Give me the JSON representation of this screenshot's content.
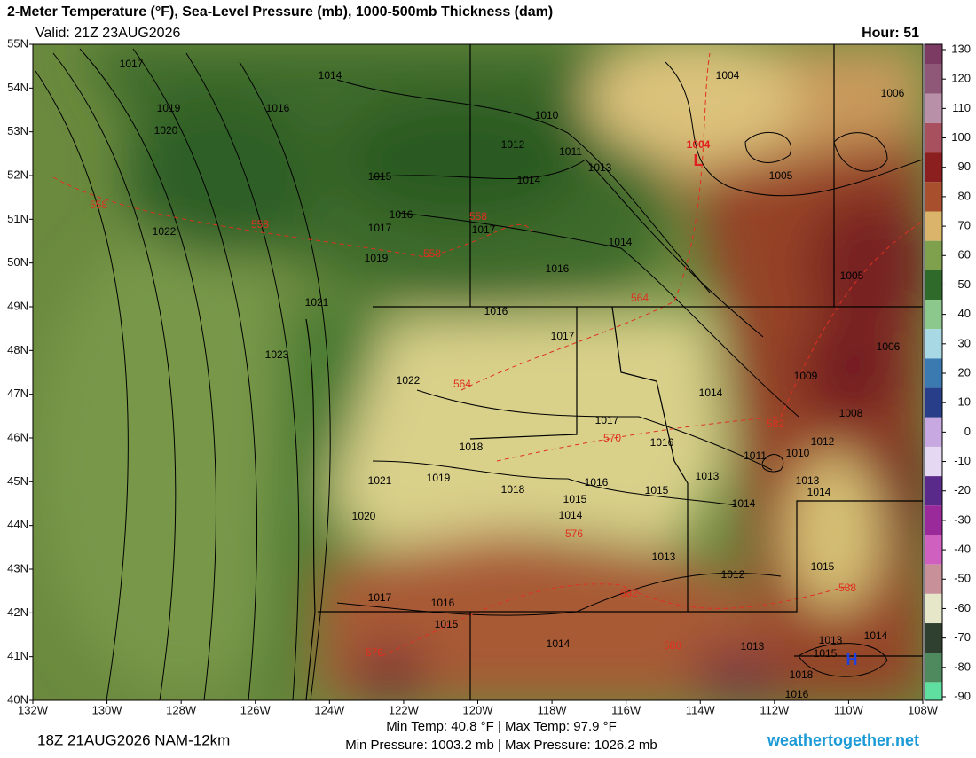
{
  "header": {
    "title": "2-Meter Temperature (°F), Sea-Level Pressure (mb), 1000-500mb Thickness (dam)",
    "valid": "Valid: 21Z 23AUG2026",
    "hour": "Hour: 51"
  },
  "map": {
    "xlim": [
      -132,
      -108
    ],
    "ylim": [
      40,
      55
    ],
    "lat_ticks": [
      {
        "value": 55,
        "label": "55N"
      },
      {
        "value": 54,
        "label": "54N"
      },
      {
        "value": 53,
        "label": "53N"
      },
      {
        "value": 52,
        "label": "52N"
      },
      {
        "value": 51,
        "label": "51N"
      },
      {
        "value": 50,
        "label": "50N"
      },
      {
        "value": 49,
        "label": "49N"
      },
      {
        "value": 48,
        "label": "48N"
      },
      {
        "value": 47,
        "label": "47N"
      },
      {
        "value": 46,
        "label": "46N"
      },
      {
        "value": 45,
        "label": "45N"
      },
      {
        "value": 44,
        "label": "44N"
      },
      {
        "value": 43,
        "label": "43N"
      },
      {
        "value": 42,
        "label": "42N"
      },
      {
        "value": 41,
        "label": "41N"
      },
      {
        "value": 40,
        "label": "40N"
      }
    ],
    "lon_ticks": [
      {
        "value": -132,
        "label": "132W"
      },
      {
        "value": -130,
        "label": "130W"
      },
      {
        "value": -128,
        "label": "128W"
      },
      {
        "value": -126,
        "label": "126W"
      },
      {
        "value": -124,
        "label": "124W"
      },
      {
        "value": -122,
        "label": "122W"
      },
      {
        "value": -120,
        "label": "120W"
      },
      {
        "value": -118,
        "label": "118W"
      },
      {
        "value": -116,
        "label": "116W"
      },
      {
        "value": -114,
        "label": "114W"
      },
      {
        "value": -112,
        "label": "112W"
      },
      {
        "value": -110,
        "label": "110W"
      },
      {
        "value": -108,
        "label": "108W"
      }
    ],
    "isobar_labels": [
      1017,
      1014,
      1016,
      1019,
      1020,
      1010,
      1012,
      1011,
      1013,
      1014,
      1015,
      1016,
      1017,
      1017,
      1022,
      1019,
      1016,
      1014,
      1021,
      1016,
      1017,
      1023,
      1022,
      1014,
      1017,
      1018,
      1016,
      1021,
      1019,
      1018,
      1016,
      1015,
      1013,
      1015,
      1014,
      1014,
      1020,
      1017,
      1016,
      1015,
      1014,
      1013,
      1012,
      1004,
      1006,
      1005,
      1005,
      1006,
      1009,
      1008,
      1012,
      1011,
      1010,
      1013,
      1014,
      1015,
      1013,
      1013,
      1015,
      1014,
      1018,
      1016
    ],
    "thickness_labels": [
      558,
      558,
      558,
      558,
      564,
      564,
      570,
      582,
      576,
      582,
      588,
      576,
      588
    ],
    "low_value": 1004,
    "low_label": "L",
    "high_label": "H",
    "colorbar_ticks": [
      130,
      120,
      110,
      100,
      90,
      80,
      70,
      60,
      50,
      40,
      30,
      20,
      10,
      0,
      -10,
      -20,
      -30,
      -40,
      -50,
      -60,
      -70,
      -80,
      -90
    ],
    "colorbar_colors": [
      "#7c3b63",
      "#8f5878",
      "#b890a8",
      "#a8505e",
      "#8b1e1e",
      "#a8502e",
      "#d9b46a",
      "#7fa04c",
      "#2f6a2a",
      "#8cc88c",
      "#a8d8e4",
      "#3a7ab0",
      "#283e88",
      "#c8a8e0",
      "#e4d8f2",
      "#5a2a8a",
      "#9a2a9a",
      "#d060c0",
      "#c89098",
      "#e6e6c8",
      "#304030",
      "#4e8a5e",
      "#60e0a0"
    ]
  },
  "footer": {
    "run": "18Z 21AUG2026 NAM-12km",
    "temps": "Min Temp:  40.8 °F | Max Temp:  97.9 °F",
    "pressures": "Min Pressure: 1003.2 mb | Max Pressure: 1026.2 mb",
    "site": "weathertogether.net"
  }
}
